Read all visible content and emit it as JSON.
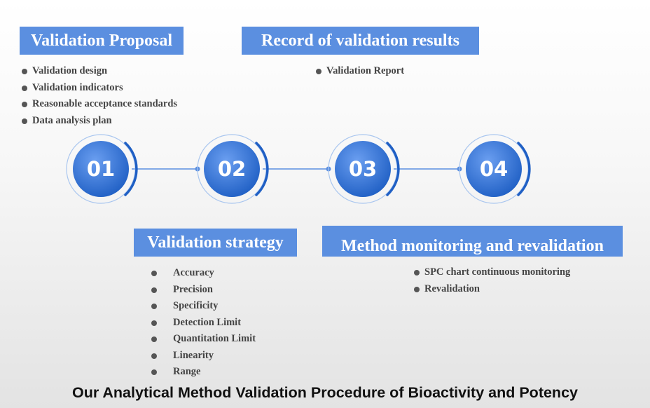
{
  "sections": [
    {
      "title": "Validation Proposal",
      "items": [
        "Validation design",
        "Validation indicators",
        "Reasonable acceptance standards",
        "Data analysis plan"
      ]
    },
    {
      "title": "Record of validation results",
      "items": [
        "Validation Report"
      ]
    },
    {
      "title": "Validation strategy",
      "items": [
        "Accuracy",
        "Precision",
        "Specificity",
        "Detection Limit",
        "Quantitation Limit",
        "Linearity",
        "Range"
      ]
    },
    {
      "title": "Method monitoring and revalidation",
      "items": [
        "SPC chart continuous monitoring",
        "Revalidation"
      ]
    }
  ],
  "steps": [
    "01",
    "02",
    "03",
    "04"
  ],
  "colors": {
    "accent": "#5b8fe0",
    "circle_dark": "#1f5fc4",
    "circle_light": "#6a9ef0",
    "ring": "#a9c6ef",
    "arc": "#1f5fc4"
  },
  "footer": "Our Analytical Method Validation Procedure of Bioactivity and Potency"
}
